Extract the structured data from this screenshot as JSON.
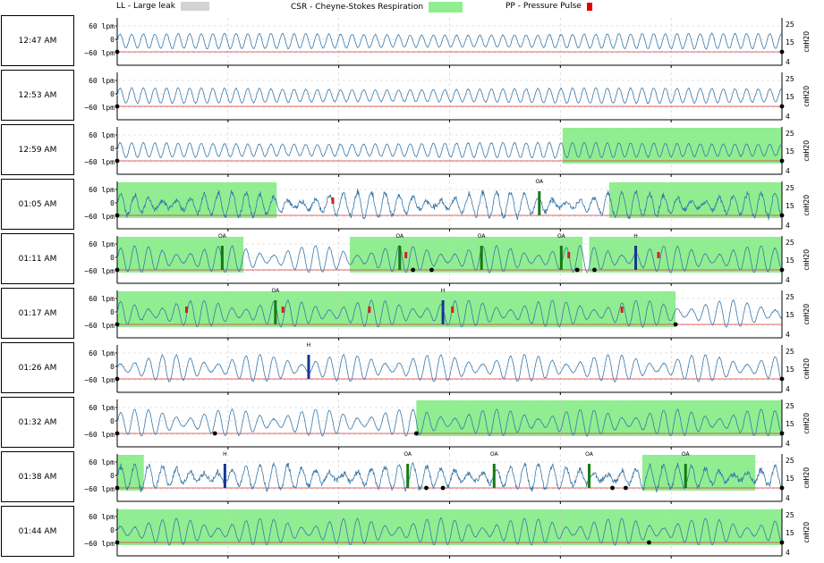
{
  "legend": [
    {
      "label": "LL - Large leak",
      "color": "#d3d3d3"
    },
    {
      "label": "CSR - Cheyne-Stokes Respiration",
      "color": "#90ee90"
    },
    {
      "label": "PP - Pressure Pulse",
      "color": "#e00000"
    }
  ],
  "axis": {
    "left_ticks": [
      "60 lpm",
      "0",
      "−60 lpm"
    ],
    "right_ticks": [
      "25",
      "15",
      "4"
    ],
    "right_label": "cmH2O"
  },
  "colors": {
    "flow": "#3a78a8",
    "pressure": "#e03030",
    "csr": "#90ee90",
    "oa": "#157a15",
    "h": "#1a3390",
    "pp": "#d02020",
    "grid": "#cccccc"
  },
  "chart_data": {
    "type": "line",
    "rows": [
      {
        "time": "12:47 AM",
        "csr": [],
        "events": [],
        "pp": [],
        "markers": [
          0.0,
          1.0
        ],
        "pattern": "regular"
      },
      {
        "time": "12:53 AM",
        "csr": [],
        "events": [],
        "pp": [],
        "markers": [
          0.0,
          1.0
        ],
        "pattern": "regular"
      },
      {
        "time": "12:59 AM",
        "csr": [
          [
            0.67,
            1.0
          ]
        ],
        "events": [],
        "pp": [],
        "markers": [
          0.0,
          1.0
        ],
        "pattern": "regular"
      },
      {
        "time": "01:05 AM",
        "csr": [
          [
            0.0,
            0.24
          ],
          [
            0.74,
            1.0
          ]
        ],
        "events": [
          {
            "type": "OA",
            "pos": 0.635
          }
        ],
        "pp": [
          0.325
        ],
        "markers": [
          0.0,
          1.0
        ],
        "pattern": "irregular"
      },
      {
        "time": "01:11 AM",
        "csr": [
          [
            0.0,
            0.19
          ],
          [
            0.35,
            0.7
          ],
          [
            0.71,
            1.0
          ]
        ],
        "events": [
          {
            "type": "OA",
            "pos": 0.158
          },
          {
            "type": "OA",
            "pos": 0.425
          },
          {
            "type": "OA",
            "pos": 0.548
          },
          {
            "type": "OA",
            "pos": 0.668
          },
          {
            "type": "H",
            "pos": 0.78
          }
        ],
        "pp": [
          0.435,
          0.68,
          0.815
        ],
        "markers": [
          0.0,
          0.445,
          0.473,
          0.692,
          0.718,
          1.0
        ],
        "pattern": "csr"
      },
      {
        "time": "01:17 AM",
        "csr": [
          [
            0.0,
            0.84
          ]
        ],
        "events": [
          {
            "type": "OA",
            "pos": 0.238
          },
          {
            "type": "H",
            "pos": 0.49
          }
        ],
        "pp": [
          0.105,
          0.25,
          0.38,
          0.505,
          0.76
        ],
        "markers": [
          0.0,
          0.84
        ],
        "pattern": "csr"
      },
      {
        "time": "01:26 AM",
        "csr": [],
        "events": [
          {
            "type": "H",
            "pos": 0.288
          }
        ],
        "pp": [],
        "markers": [
          0.0,
          1.0
        ],
        "pattern": "csr"
      },
      {
        "time": "01:32 AM",
        "csr": [
          [
            0.45,
            1.0
          ]
        ],
        "events": [],
        "pp": [],
        "markers": [
          0.0,
          0.147,
          0.45,
          1.0
        ],
        "pattern": "csr"
      },
      {
        "time": "01:38 AM",
        "csr": [
          [
            0.0,
            0.04
          ],
          [
            0.79,
            0.96
          ]
        ],
        "events": [
          {
            "type": "H",
            "pos": 0.162
          },
          {
            "type": "OA",
            "pos": 0.437
          },
          {
            "type": "OA",
            "pos": 0.567
          },
          {
            "type": "OA",
            "pos": 0.71
          },
          {
            "type": "OA",
            "pos": 0.855
          }
        ],
        "pp": [],
        "markers": [
          0.0,
          0.465,
          0.49,
          0.745,
          0.765,
          1.0
        ],
        "pattern": "irregular"
      },
      {
        "time": "01:44 AM",
        "csr": [
          [
            0.0,
            1.0
          ]
        ],
        "events": [],
        "pp": [],
        "markers": [
          0.0,
          0.8,
          1.0
        ],
        "pattern": "csr"
      }
    ]
  }
}
